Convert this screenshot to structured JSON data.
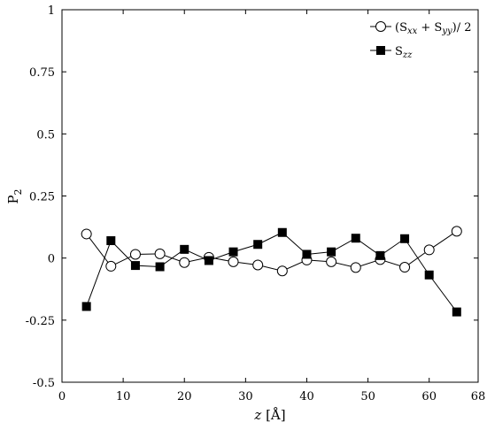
{
  "chart_data": {
    "type": "line",
    "xlabel_var": "z",
    "xlabel_unit": " [Å]",
    "ylabel_main": "P",
    "ylabel_sub": "2",
    "xlim": [
      0,
      68
    ],
    "ylim": [
      -0.5,
      1
    ],
    "xticks": [
      0,
      10,
      20,
      30,
      40,
      50,
      60,
      68
    ],
    "xtick_labels": [
      "0",
      "10",
      "20",
      "30",
      "40",
      "50",
      "60",
      "68"
    ],
    "yticks": [
      -0.5,
      -0.25,
      0,
      0.25,
      0.5,
      0.75,
      1
    ],
    "ytick_labels": [
      "-0.5",
      "-0.25",
      "0",
      "0.25",
      "0.5",
      "0.75",
      "1"
    ],
    "grid": false,
    "legend_position": "top-right",
    "series": [
      {
        "legend_parts": [
          "(S",
          "xx",
          " + S",
          "yy",
          ")/ 2"
        ],
        "marker": "open-circle",
        "color": "#000000",
        "x": [
          4,
          8,
          12,
          16,
          20,
          24,
          28,
          32,
          36,
          40,
          44,
          48,
          52,
          56,
          60,
          64.5
        ],
        "y": [
          0.097,
          -0.033,
          0.015,
          0.017,
          -0.018,
          0.003,
          -0.015,
          -0.028,
          -0.052,
          -0.008,
          -0.015,
          -0.038,
          -0.006,
          -0.037,
          0.033,
          0.108
        ]
      },
      {
        "legend_parts": [
          "S",
          "zz"
        ],
        "marker": "filled-square",
        "color": "#000000",
        "x": [
          4,
          8,
          12,
          16,
          20,
          24,
          28,
          32,
          36,
          40,
          44,
          48,
          52,
          56,
          60,
          64.5
        ],
        "y": [
          -0.195,
          0.07,
          -0.03,
          -0.035,
          0.035,
          -0.01,
          0.025,
          0.055,
          0.103,
          0.015,
          0.025,
          0.08,
          0.01,
          0.078,
          -0.068,
          -0.217
        ]
      }
    ]
  }
}
